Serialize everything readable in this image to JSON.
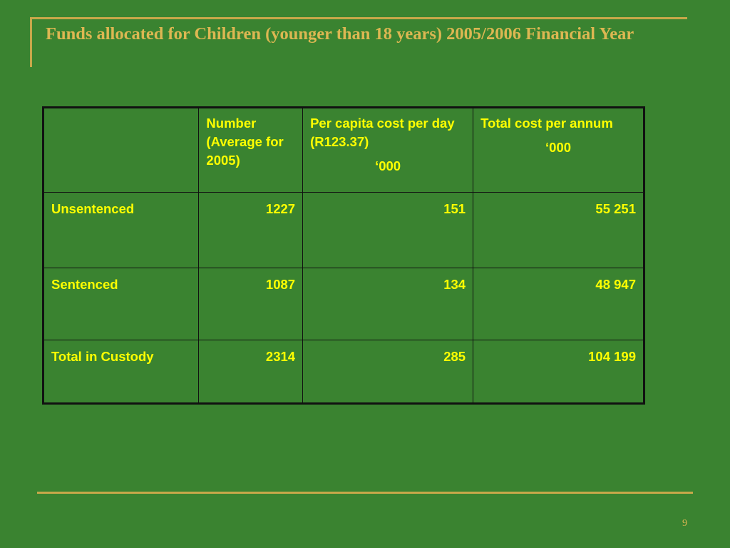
{
  "slide": {
    "title": "Funds allocated for Children (younger than 18 years) 2005/2006 Financial Year",
    "page_number": "9"
  },
  "table": {
    "headers": {
      "corner": "",
      "number": "Number (Average for 2005)",
      "per_capita": "Per capita cost per day (R123.37)",
      "per_capita_unit": "‘000",
      "total": "Total cost per annum",
      "total_unit": "‘000"
    },
    "rows": [
      {
        "label": "Unsentenced",
        "number": "1227",
        "per_capita": "151",
        "total": "55 251"
      },
      {
        "label": "Sentenced",
        "number": "1087",
        "per_capita": "134",
        "total": "48 947"
      },
      {
        "label": "Total in Custody",
        "number": "2314",
        "per_capita": "285",
        "total": "104 199"
      }
    ]
  },
  "colors": {
    "background": "#3a8330",
    "title": "#ddb752",
    "rule": "#c8a84a",
    "table_text": "#ffff00",
    "table_border": "#111111"
  }
}
